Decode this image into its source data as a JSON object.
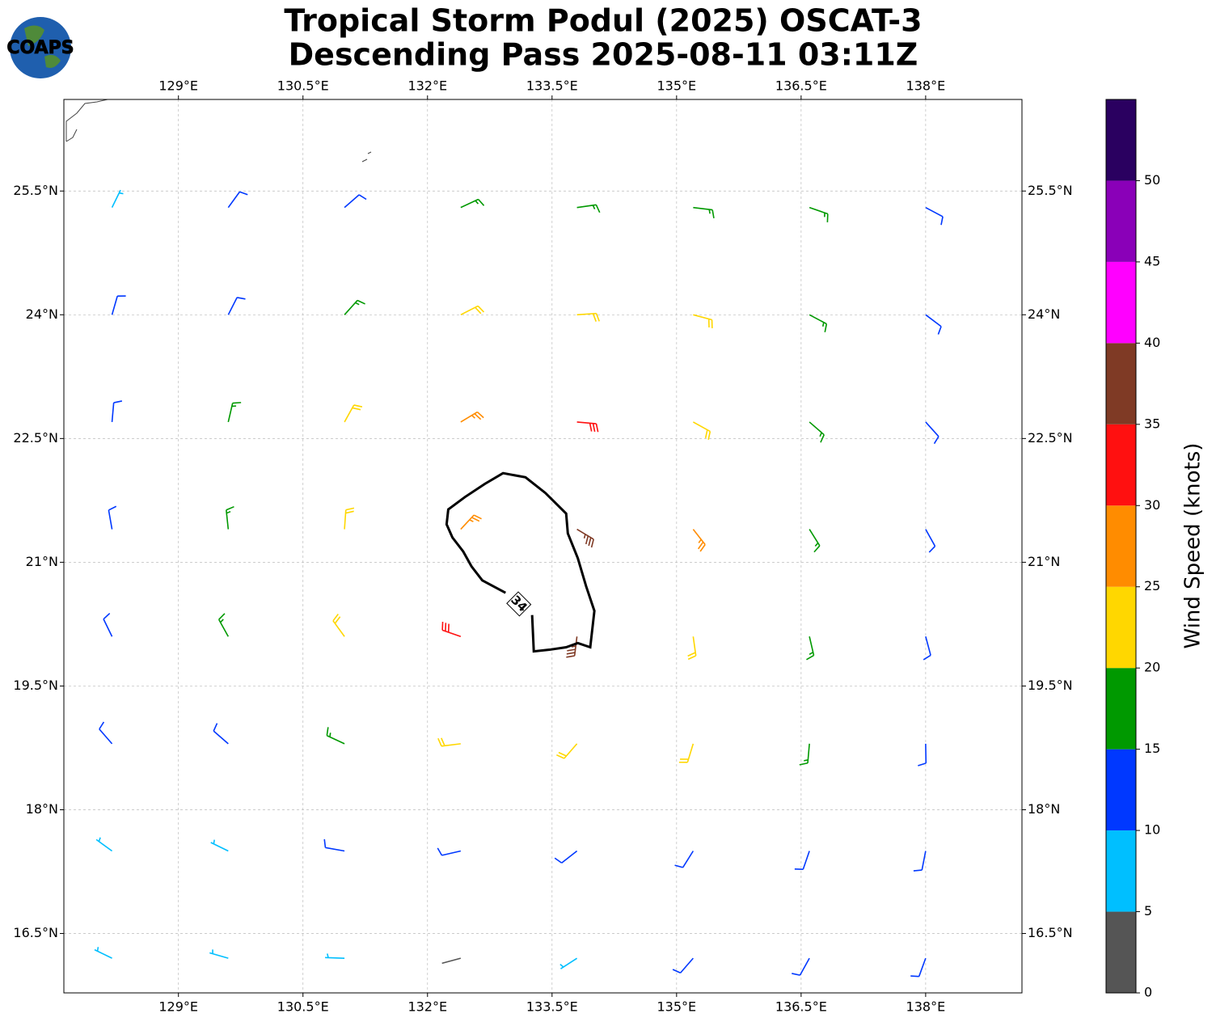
{
  "chart_data": {
    "type": "barbs",
    "title_lines": [
      "Tropical Storm Podul (2025) OSCAT-3",
      "Descending Pass 2025-08-11 03:11Z"
    ],
    "logo": "COAPS",
    "xlim": [
      127.62,
      139.16
    ],
    "ylim": [
      15.78,
      26.61
    ],
    "xticks": [
      {
        "value": 129,
        "label": "129°E"
      },
      {
        "value": 130.5,
        "label": "130.5°E"
      },
      {
        "value": 132,
        "label": "132°E"
      },
      {
        "value": 133.5,
        "label": "133.5°E"
      },
      {
        "value": 135,
        "label": "135°E"
      },
      {
        "value": 136.5,
        "label": "136.5°E"
      },
      {
        "value": 138,
        "label": "138°E"
      }
    ],
    "yticks": [
      {
        "value": 16.5,
        "label": "16.5°N"
      },
      {
        "value": 18,
        "label": "18°N"
      },
      {
        "value": 19.5,
        "label": "19.5°N"
      },
      {
        "value": 21,
        "label": "21°N"
      },
      {
        "value": 22.5,
        "label": "22.5°N"
      },
      {
        "value": 24,
        "label": "24°N"
      },
      {
        "value": 25.5,
        "label": "25.5°N"
      }
    ],
    "grid": true,
    "wind": {
      "lon": [
        128.2,
        129.6,
        131.0,
        132.4,
        133.8,
        135.2,
        136.6,
        138.0,
        128.2,
        129.6,
        131.0,
        132.4,
        133.8,
        135.2,
        136.6,
        138.0,
        128.2,
        129.6,
        131.0,
        132.4,
        133.8,
        135.2,
        136.6,
        138.0,
        128.2,
        129.6,
        131.0,
        132.4,
        133.8,
        135.2,
        136.6,
        138.0,
        128.2,
        129.6,
        131.0,
        132.4,
        133.8,
        135.2,
        136.6,
        138.0,
        128.2,
        129.6,
        131.0,
        132.4,
        133.8,
        135.2,
        136.6,
        138.0,
        128.2,
        129.6,
        131.0,
        132.4,
        133.8,
        135.2,
        136.6,
        138.0,
        128.2,
        129.6,
        131.0,
        132.4,
        133.8,
        135.2,
        136.6,
        138.0
      ],
      "lat": [
        16.2,
        16.2,
        16.2,
        16.2,
        16.2,
        16.2,
        16.2,
        16.2,
        17.5,
        17.5,
        17.5,
        17.5,
        17.5,
        17.5,
        17.5,
        17.5,
        18.8,
        18.8,
        18.8,
        18.8,
        18.8,
        18.8,
        18.8,
        18.8,
        20.1,
        20.1,
        20.1,
        20.1,
        20.1,
        20.1,
        20.1,
        20.1,
        21.4,
        21.4,
        21.4,
        21.4,
        21.4,
        21.4,
        21.4,
        21.4,
        22.7,
        22.7,
        22.7,
        22.7,
        22.7,
        22.7,
        22.7,
        22.7,
        24.0,
        24.0,
        24.0,
        24.0,
        24.0,
        24.0,
        24.0,
        24.0,
        25.3,
        25.3,
        25.3,
        25.3,
        25.3,
        25.3,
        25.3,
        25.3
      ],
      "speed": [
        8,
        7,
        6,
        4,
        8,
        10,
        11,
        12,
        8,
        9,
        11,
        12,
        13,
        13,
        13,
        12,
        11,
        13,
        17,
        22,
        24,
        20,
        15,
        12,
        12,
        16,
        24,
        30,
        37,
        24,
        17,
        13,
        12,
        17,
        23,
        28,
        37,
        25,
        17,
        13,
        12,
        16,
        21,
        27,
        30,
        24,
        17,
        13,
        11,
        14,
        17,
        20,
        22,
        20,
        16,
        13,
        8,
        11,
        14,
        17,
        18,
        17,
        15,
        13
      ],
      "direction": [
        296,
        286,
        272,
        255,
        237,
        221,
        209,
        200,
        306,
        296,
        280,
        257,
        232,
        212,
        199,
        191,
        319,
        311,
        295,
        263,
        221,
        197,
        185,
        179,
        334,
        331,
        324,
        289,
        187,
        172,
        167,
        165,
        350,
        354,
        4,
        43,
        121,
        142,
        148,
        151,
        5,
        13,
        29,
        59,
        95,
        119,
        131,
        138,
        16,
        27,
        42,
        63,
        86,
        105,
        118,
        127,
        26,
        36,
        49,
        65,
        82,
        97,
        109,
        118
      ]
    },
    "contour": {
      "level": 34,
      "lon": [
        132.94,
        132.66,
        132.53,
        132.43,
        132.3,
        132.23,
        132.25,
        132.45,
        132.69,
        132.91,
        133.18,
        133.42,
        133.67,
        133.69,
        133.81,
        133.91,
        134.01,
        133.96,
        133.81,
        133.67,
        133.47,
        133.28,
        133.26
      ],
      "lat": [
        20.63,
        20.78,
        20.95,
        21.13,
        21.3,
        21.46,
        21.64,
        21.79,
        21.95,
        22.08,
        22.03,
        21.84,
        21.59,
        21.35,
        21.05,
        20.71,
        20.41,
        19.97,
        20.02,
        19.97,
        19.94,
        19.92,
        20.36
      ]
    },
    "colorbar": {
      "label": "Wind Speed (knots)",
      "lim": [
        0,
        55
      ],
      "ticks": [
        0,
        5,
        10,
        15,
        20,
        25,
        30,
        35,
        40,
        45,
        50
      ],
      "colors": [
        "#555555",
        "#00bfff",
        "#0038ff",
        "#009900",
        "#ffd700",
        "#ff8c00",
        "#ff1010",
        "#7f3a25",
        "#ff00ff",
        "#8a00b8",
        "#2a0060"
      ]
    }
  }
}
